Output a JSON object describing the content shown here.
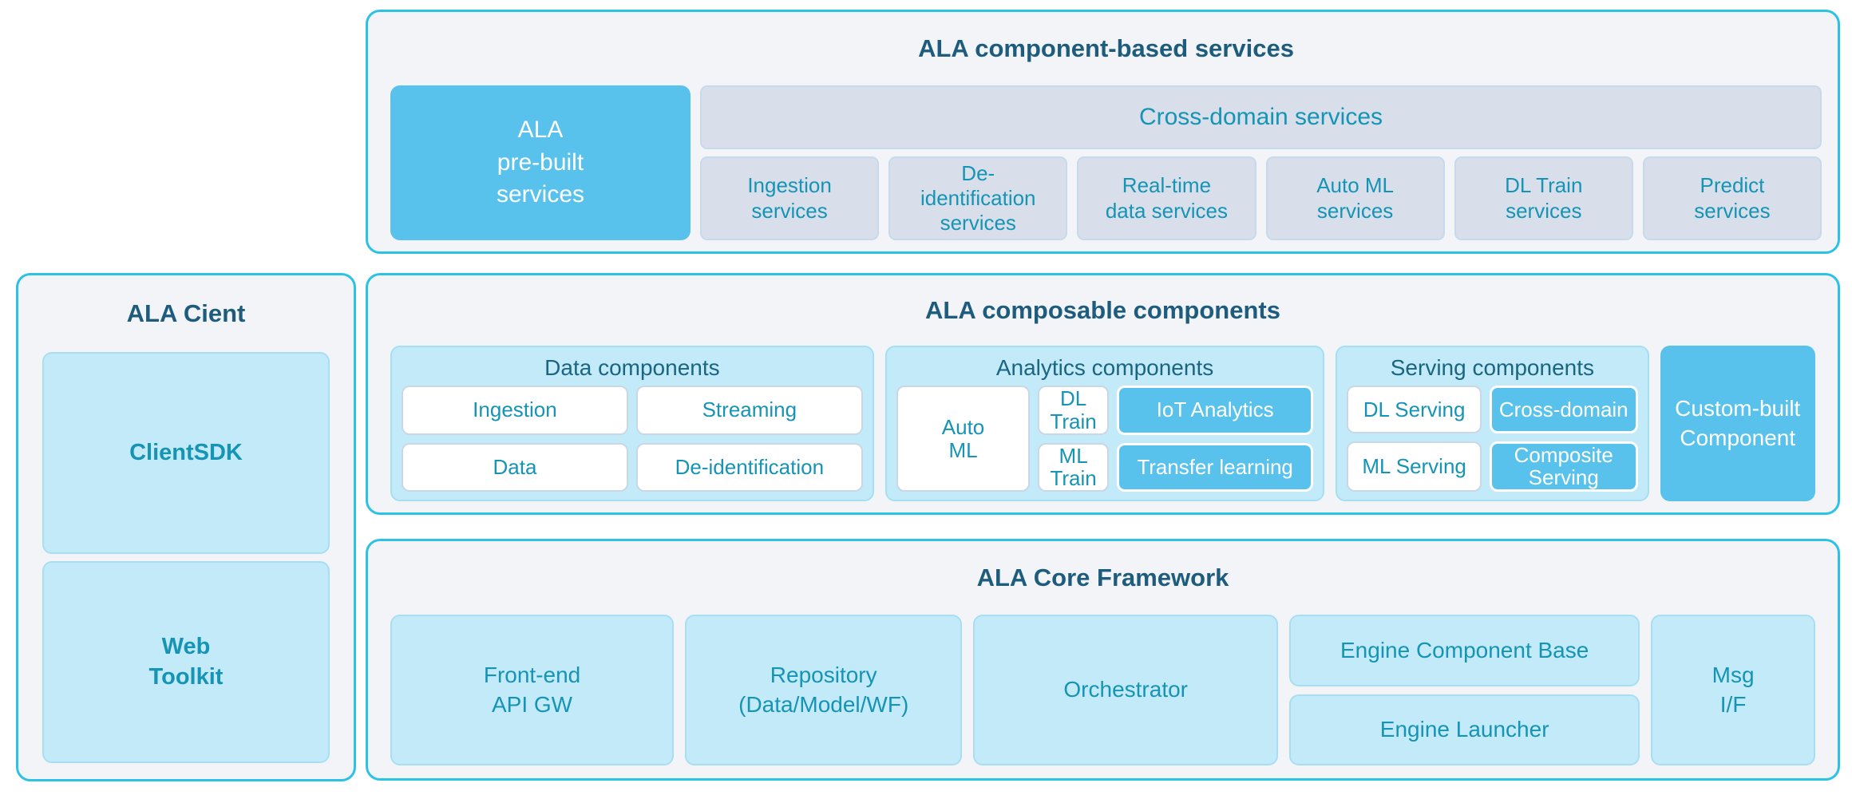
{
  "colors": {
    "panel_border": "#2bc2e5",
    "panel_bg": "#f2f4f8",
    "panel_title_text": "#1e5c7d",
    "teal_text": "#1594b5",
    "group_title_text": "#1a6580",
    "blue_box": "#58c2ec",
    "light_blue_box": "#c3eaf9",
    "gray_blue_box": "#d8dfea",
    "white_box": "#ffffff"
  },
  "services_panel": {
    "title": "ALA component-based services",
    "prebuilt_label": "ALA\npre-built\nservices",
    "cross_domain_label": "Cross-domain services",
    "service_boxes": [
      "Ingestion\nservices",
      "De-\nidentification\nservices",
      "Real-time\ndata services",
      "Auto ML\nservices",
      "DL Train\nservices",
      "Predict\nservices"
    ]
  },
  "client_panel": {
    "title": "ALA Cient",
    "client_sdk_label": "ClientSDK",
    "web_toolkit_label": "Web\nToolkit"
  },
  "composable_panel": {
    "title": "ALA composable components",
    "data_group": {
      "title": "Data components",
      "boxes": [
        "Ingestion",
        "Streaming",
        "Data",
        "De-identification"
      ]
    },
    "analytics_group": {
      "title": "Analytics components",
      "dl_train": "DL Train",
      "ml_train": "ML Train",
      "auto_ml": "Auto\nML",
      "iot_analytics": "IoT Analytics",
      "transfer_learning": "Transfer learning"
    },
    "serving_group": {
      "title": "Serving components",
      "dl_serving": "DL Serving",
      "ml_serving": "ML Serving",
      "cross_domain": "Cross-domain",
      "composite_serving": "Composite\nServing"
    },
    "custom_label": "Custom-built\nComponent"
  },
  "core_panel": {
    "title": "ALA Core Framework",
    "front_end": "Front-end\nAPI GW",
    "repository": "Repository\n(Data/Model/WF)",
    "orchestrator": "Orchestrator",
    "engine_component_base": "Engine Component Base",
    "engine_launcher": "Engine Launcher",
    "msg_if": "Msg\nI/F"
  }
}
